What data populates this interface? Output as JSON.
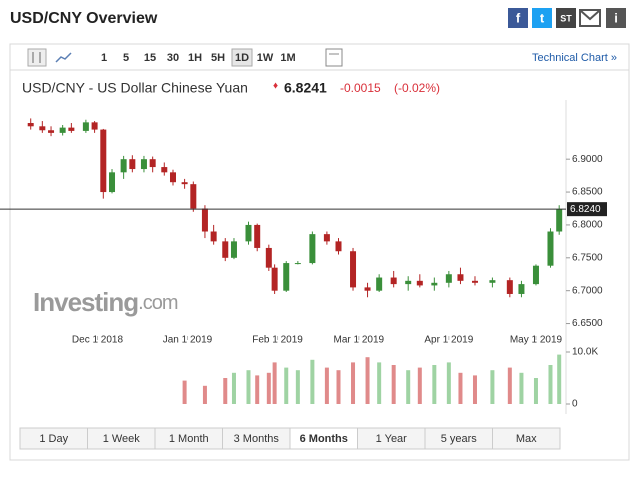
{
  "header": {
    "title": "USD/CNY Overview",
    "share_icons": [
      "f",
      "t",
      "ST",
      "i"
    ]
  },
  "toolbar": {
    "intervals": [
      "1",
      "5",
      "15",
      "30",
      "1H",
      "5H",
      "1D",
      "1W",
      "1M"
    ],
    "selected": "1D",
    "link": "Technical Chart »"
  },
  "quote": {
    "name": "USD/CNY - US Dollar Chinese Yuan",
    "last": "6.8241",
    "change": "-0.0015",
    "change_pct": "(-0.02%)"
  },
  "watermark": {
    "brand": "Investing",
    "suffix": ".com"
  },
  "chart_data": {
    "type": "candlestick",
    "x": [
      "2018-11-08",
      "2018-11-12",
      "2018-11-15",
      "2018-11-19",
      "2018-11-22",
      "2018-11-27",
      "2018-11-30",
      "2018-12-03",
      "2018-12-06",
      "2018-12-10",
      "2018-12-13",
      "2018-12-17",
      "2018-12-20",
      "2018-12-24",
      "2018-12-27",
      "2018-12-31",
      "2019-01-03",
      "2019-01-07",
      "2019-01-10",
      "2019-01-14",
      "2019-01-17",
      "2019-01-22",
      "2019-01-25",
      "2019-01-29",
      "2019-01-31",
      "2019-02-04",
      "2019-02-08",
      "2019-02-13",
      "2019-02-18",
      "2019-02-22",
      "2019-02-27",
      "2019-03-04",
      "2019-03-08",
      "2019-03-13",
      "2019-03-18",
      "2019-03-22",
      "2019-03-27",
      "2019-04-01",
      "2019-04-05",
      "2019-04-10",
      "2019-04-16",
      "2019-04-22",
      "2019-04-26",
      "2019-05-01",
      "2019-05-06",
      "2019-05-09"
    ],
    "open": [
      6.955,
      6.95,
      6.944,
      6.94,
      6.948,
      6.943,
      6.956,
      6.945,
      6.85,
      6.88,
      6.9,
      6.885,
      6.9,
      6.888,
      6.88,
      6.865,
      6.862,
      6.825,
      6.79,
      6.775,
      6.75,
      6.775,
      6.8,
      6.765,
      6.735,
      6.7,
      6.742,
      6.742,
      6.786,
      6.775,
      6.76,
      6.705,
      6.7,
      6.72,
      6.71,
      6.715,
      6.708,
      6.712,
      6.725,
      6.715,
      6.712,
      6.716,
      6.695,
      6.71,
      6.738,
      6.79
    ],
    "high": [
      6.962,
      6.958,
      6.95,
      6.952,
      6.955,
      6.96,
      6.958,
      6.946,
      6.885,
      6.905,
      6.906,
      6.905,
      6.904,
      6.895,
      6.884,
      6.87,
      6.866,
      6.83,
      6.8,
      6.78,
      6.78,
      6.805,
      6.802,
      6.77,
      6.74,
      6.745,
      6.745,
      6.79,
      6.79,
      6.78,
      6.765,
      6.712,
      6.725,
      6.73,
      6.722,
      6.725,
      6.72,
      6.73,
      6.735,
      6.722,
      6.72,
      6.72,
      6.715,
      6.74,
      6.795,
      6.83
    ],
    "low": [
      6.945,
      6.94,
      6.935,
      6.936,
      6.94,
      6.94,
      6.94,
      6.84,
      6.848,
      6.87,
      6.88,
      6.88,
      6.88,
      6.875,
      6.86,
      6.855,
      6.82,
      6.78,
      6.77,
      6.745,
      6.748,
      6.77,
      6.76,
      6.73,
      6.695,
      6.698,
      6.74,
      6.74,
      6.77,
      6.755,
      6.7,
      6.69,
      6.698,
      6.705,
      6.7,
      6.705,
      6.7,
      6.705,
      6.71,
      6.708,
      6.705,
      6.69,
      6.69,
      6.708,
      6.735,
      6.785
    ],
    "close": [
      6.95,
      6.944,
      6.94,
      6.948,
      6.943,
      6.956,
      6.945,
      6.85,
      6.88,
      6.9,
      6.885,
      6.9,
      6.888,
      6.88,
      6.865,
      6.862,
      6.825,
      6.79,
      6.775,
      6.75,
      6.775,
      6.8,
      6.765,
      6.735,
      6.7,
      6.742,
      6.742,
      6.786,
      6.775,
      6.76,
      6.705,
      6.7,
      6.72,
      6.71,
      6.715,
      6.708,
      6.712,
      6.725,
      6.715,
      6.712,
      6.716,
      6.695,
      6.71,
      6.738,
      6.79,
      6.8241
    ],
    "volume": [
      0,
      0,
      0,
      0,
      0,
      0,
      0,
      0,
      0,
      0,
      0,
      0,
      0,
      0,
      0,
      4500,
      0,
      3500,
      0,
      5000,
      6000,
      6500,
      5500,
      6000,
      8000,
      7000,
      6500,
      8500,
      7000,
      6500,
      8000,
      9000,
      8000,
      7500,
      6500,
      7000,
      7500,
      8000,
      6000,
      5500,
      6500,
      7000,
      6000,
      5000,
      7500,
      9500
    ],
    "up_color": "#3a8f3a",
    "down_color": "#b32424",
    "volume_up_color": "#9fd3a3",
    "volume_down_color": "#e08a8a",
    "xlim": [
      "2018-11-05",
      "2019-05-11"
    ],
    "xticks": [
      {
        "value": "2018-12-01",
        "label": "Dec 1 2018"
      },
      {
        "value": "2019-01-01",
        "label": "Jan 1 2019"
      },
      {
        "value": "2019-02-01",
        "label": "Feb 1 2019"
      },
      {
        "value": "2019-03-01",
        "label": "Mar 1 2019"
      },
      {
        "value": "2019-04-01",
        "label": "Apr 1 2019"
      },
      {
        "value": "2019-05-01",
        "label": "May 1 2019"
      }
    ],
    "ylim": [
      6.625,
      6.99
    ],
    "yticks": [
      {
        "value": 6.65,
        "label": "6.6500"
      },
      {
        "value": 6.7,
        "label": "6.7000"
      },
      {
        "value": 6.75,
        "label": "6.7500"
      },
      {
        "value": 6.8,
        "label": "6.8000"
      },
      {
        "value": 6.85,
        "label": "6.8500"
      },
      {
        "value": 6.9,
        "label": "6.9000"
      }
    ],
    "price_line": {
      "value": 6.824,
      "label": "6.8240"
    },
    "volume_ylim": [
      0,
      10000
    ],
    "volume_ticks": [
      0,
      {
        "value": 10000,
        "label": "10.0K"
      }
    ]
  },
  "ranges": {
    "items": [
      "1 Day",
      "1 Week",
      "1 Month",
      "3 Months",
      "6 Months",
      "1 Year",
      "5 years",
      "Max"
    ],
    "selected": "6 Months"
  }
}
